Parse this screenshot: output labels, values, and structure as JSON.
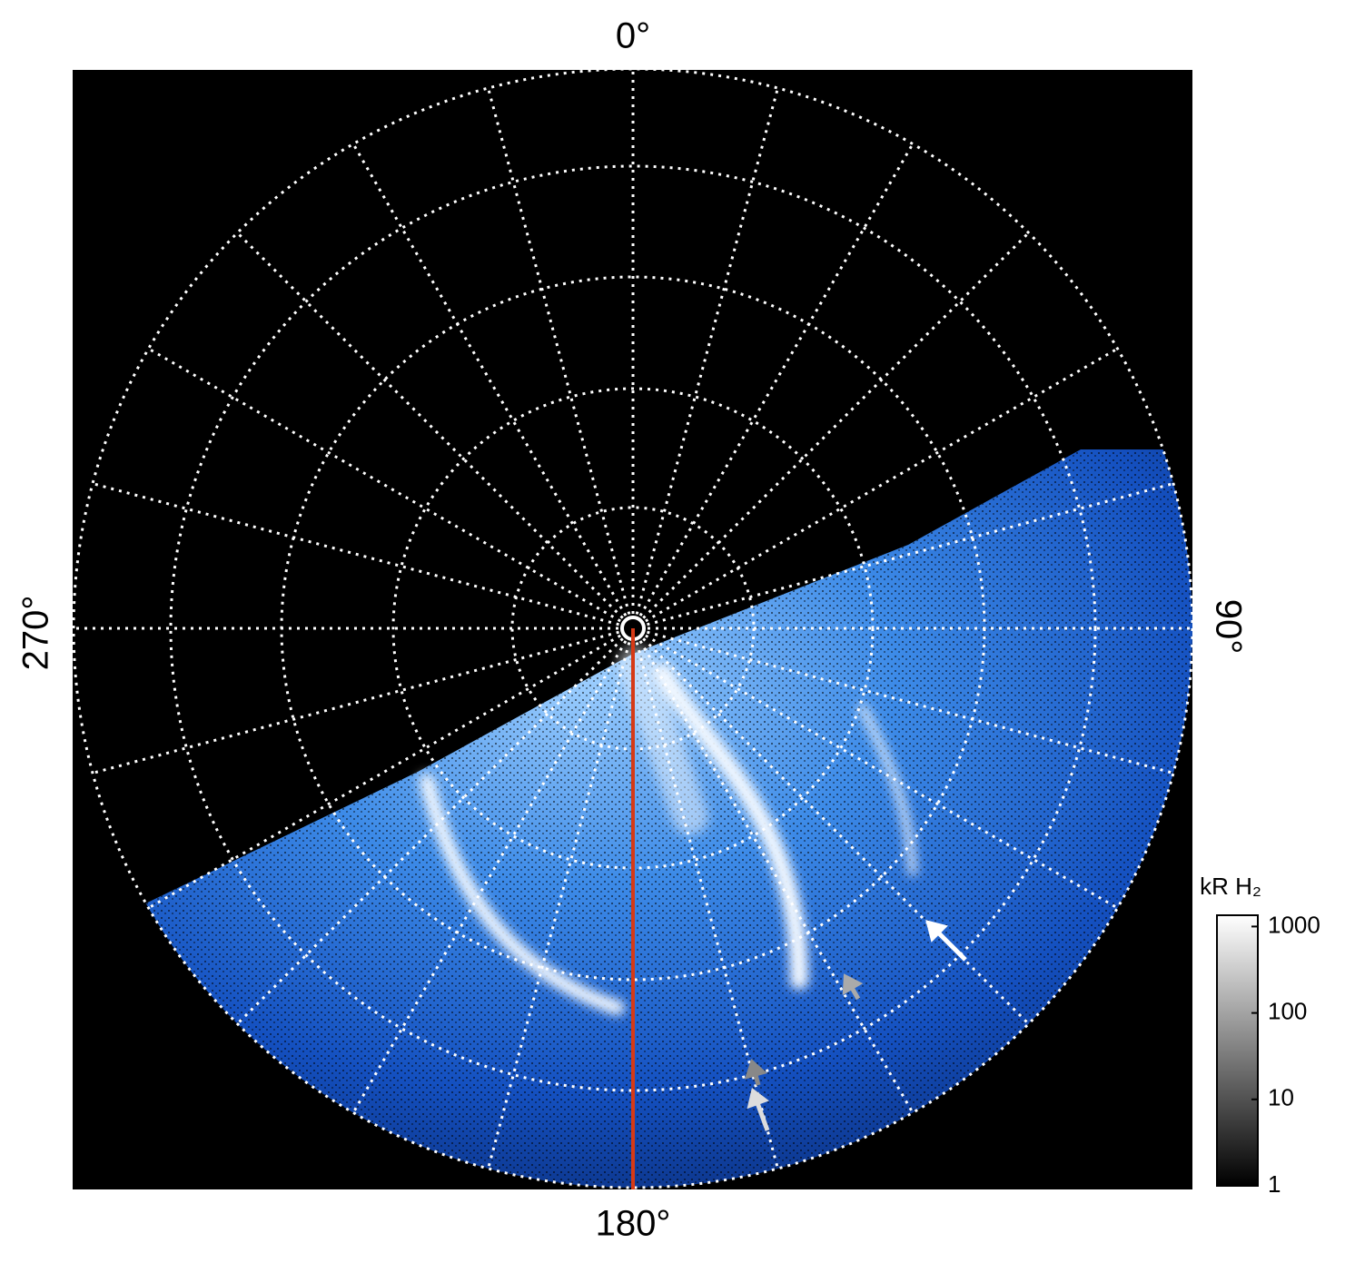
{
  "chart_data": {
    "type": "polar-image",
    "angle_labels": {
      "top": "0°",
      "right": "90°",
      "bottom": "180°",
      "left": "270°"
    },
    "colorbar": {
      "label": "kR H₂",
      "log": true,
      "lim": [
        1,
        1350
      ],
      "ticks": [
        1,
        10,
        100,
        1000
      ]
    }
  }
}
